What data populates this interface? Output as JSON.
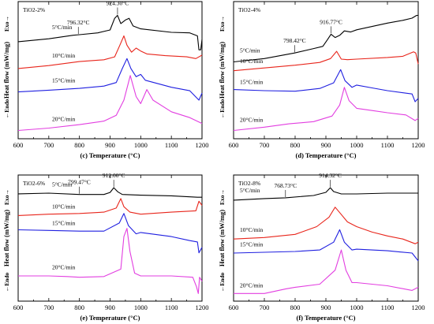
{
  "colors": {
    "rate_5": "#000000",
    "rate_10": "#e8251b",
    "rate_15": "#1f1fe0",
    "rate_20": "#e23ee0"
  },
  "chart_data": [
    {
      "id": "c",
      "type": "line",
      "title": "TiO2-2%",
      "caption": "(c) Temperature (°C)",
      "ylabel": "Heat flow (mW/mg)",
      "ylabel_exo": "Exo→",
      "ylabel_endo": "←Endo",
      "xlim": [
        600,
        1200
      ],
      "xticks": [
        600,
        700,
        800,
        900,
        1000,
        1100,
        1200
      ],
      "series": [
        {
          "name": "5°C/min",
          "rate": 5,
          "points": [
            [
              600,
              3.3
            ],
            [
              700,
              3.05
            ],
            [
              780,
              2.75
            ],
            [
              800,
              2.7
            ],
            [
              860,
              2.55
            ],
            [
              900,
              2.3
            ],
            [
              915,
              1.3
            ],
            [
              924.3,
              1.05
            ],
            [
              935,
              1.75
            ],
            [
              950,
              1.45
            ],
            [
              962,
              1.3
            ],
            [
              975,
              1.95
            ],
            [
              1000,
              2.2
            ],
            [
              1100,
              2.5
            ],
            [
              1160,
              2.55
            ],
            [
              1185,
              2.8
            ],
            [
              1190,
              4.0
            ],
            [
              1196,
              4.0
            ],
            [
              1200,
              3.1
            ]
          ]
        },
        {
          "name": "10°C/min",
          "rate": 10,
          "points": [
            [
              600,
              5.6
            ],
            [
              700,
              5.35
            ],
            [
              800,
              5.0
            ],
            [
              880,
              4.85
            ],
            [
              915,
              4.6
            ],
            [
              932,
              3.6
            ],
            [
              945,
              2.8
            ],
            [
              955,
              3.6
            ],
            [
              970,
              4.2
            ],
            [
              985,
              3.85
            ],
            [
              1000,
              4.1
            ],
            [
              1020,
              4.35
            ],
            [
              1080,
              4.5
            ],
            [
              1150,
              4.6
            ],
            [
              1180,
              4.75
            ],
            [
              1200,
              4.45
            ]
          ]
        },
        {
          "name": "15°C/min",
          "rate": 15,
          "points": [
            [
              600,
              7.6
            ],
            [
              700,
              7.45
            ],
            [
              800,
              7.3
            ],
            [
              880,
              7.1
            ],
            [
              920,
              6.8
            ],
            [
              940,
              5.6
            ],
            [
              955,
              4.75
            ],
            [
              968,
              5.6
            ],
            [
              985,
              6.3
            ],
            [
              1000,
              6.1
            ],
            [
              1015,
              6.6
            ],
            [
              1100,
              7.2
            ],
            [
              1160,
              7.5
            ],
            [
              1190,
              8.3
            ],
            [
              1200,
              7.7
            ]
          ]
        },
        {
          "name": "20°C/min",
          "rate": 20,
          "points": [
            [
              600,
              10.9
            ],
            [
              700,
              10.7
            ],
            [
              800,
              10.4
            ],
            [
              880,
              10.1
            ],
            [
              920,
              9.6
            ],
            [
              945,
              8.3
            ],
            [
              966,
              6.2
            ],
            [
              985,
              8.0
            ],
            [
              1000,
              8.6
            ],
            [
              1020,
              7.4
            ],
            [
              1040,
              8.3
            ],
            [
              1100,
              9.3
            ],
            [
              1160,
              9.8
            ],
            [
              1200,
              10.3
            ]
          ]
        }
      ],
      "annotations": [
        {
          "text": "796.32°C",
          "x": 796.32
        },
        {
          "text": "924.30°C",
          "x": 924.3
        }
      ]
    },
    {
      "id": "d",
      "type": "line",
      "title": "TiO2-4%",
      "caption": "(d) Temperature (°C)",
      "ylabel": "Heat flow (mW/mg)",
      "ylabel_exo": "Exo→",
      "ylabel_endo": "←Endo",
      "xlim": [
        600,
        1200
      ],
      "xticks": [
        600,
        700,
        800,
        900,
        1000,
        1100,
        1200
      ],
      "series": [
        {
          "name": "5°C/min",
          "rate": 5,
          "points": [
            [
              600,
              4.3
            ],
            [
              700,
              4.0
            ],
            [
              798.42,
              3.5
            ],
            [
              860,
              3.1
            ],
            [
              890,
              2.9
            ],
            [
              905,
              2.3
            ],
            [
              916.77,
              1.8
            ],
            [
              930,
              2.1
            ],
            [
              945,
              1.9
            ],
            [
              960,
              1.5
            ],
            [
              980,
              1.6
            ],
            [
              1000,
              1.4
            ],
            [
              1100,
              0.8
            ],
            [
              1150,
              0.55
            ],
            [
              1180,
              0.35
            ],
            [
              1195,
              0.1
            ],
            [
              1200,
              0.1
            ]
          ]
        },
        {
          "name": "10°C/min",
          "rate": 10,
          "points": [
            [
              600,
              5.1
            ],
            [
              700,
              4.85
            ],
            [
              800,
              4.6
            ],
            [
              880,
              4.35
            ],
            [
              915,
              4.0
            ],
            [
              935,
              3.35
            ],
            [
              950,
              4.05
            ],
            [
              970,
              4.1
            ],
            [
              1000,
              4.05
            ],
            [
              1100,
              3.9
            ],
            [
              1150,
              3.8
            ],
            [
              1185,
              3.4
            ],
            [
              1192,
              3.5
            ],
            [
              1200,
              4.5
            ]
          ]
        },
        {
          "name": "15°C/min",
          "rate": 15,
          "points": [
            [
              600,
              6.8
            ],
            [
              700,
              6.9
            ],
            [
              800,
              6.95
            ],
            [
              880,
              6.7
            ],
            [
              925,
              6.2
            ],
            [
              948,
              5.0
            ],
            [
              962,
              6.0
            ],
            [
              985,
              6.6
            ],
            [
              1000,
              6.4
            ],
            [
              1050,
              6.65
            ],
            [
              1100,
              6.9
            ],
            [
              1180,
              7.2
            ],
            [
              1190,
              7.9
            ],
            [
              1200,
              7.6
            ]
          ]
        },
        {
          "name": "20°C/min",
          "rate": 20,
          "points": [
            [
              600,
              10.5
            ],
            [
              700,
              10.2
            ],
            [
              780,
              9.9
            ],
            [
              860,
              9.7
            ],
            [
              920,
              9.2
            ],
            [
              945,
              8.2
            ],
            [
              960,
              6.6
            ],
            [
              975,
              7.8
            ],
            [
              1000,
              8.5
            ],
            [
              1050,
              8.7
            ],
            [
              1100,
              8.9
            ],
            [
              1160,
              9.1
            ],
            [
              1190,
              9.6
            ],
            [
              1200,
              9.4
            ]
          ]
        }
      ],
      "annotations": [
        {
          "text": "798.42°C",
          "x": 798.42
        },
        {
          "text": "916.77°C",
          "x": 916.77
        }
      ]
    },
    {
      "id": "e",
      "type": "line",
      "title": "TiO2-6%",
      "caption": "(e) Temperature (°C)",
      "ylabel": "Heat flow (mW/mg)",
      "ylabel_exo": "Exo→",
      "ylabel_endo": "←Endo",
      "xlim": [
        600,
        1200
      ],
      "xticks": [
        600,
        700,
        800,
        900,
        1000,
        1100,
        1200
      ],
      "series": [
        {
          "name": "5°C/min",
          "rate": 5,
          "points": [
            [
              600,
              2.25
            ],
            [
              700,
              2.2
            ],
            [
              799.47,
              2.3
            ],
            [
              880,
              2.3
            ],
            [
              900,
              2.15
            ],
            [
              912,
              1.8
            ],
            [
              925,
              2.1
            ],
            [
              940,
              2.3
            ],
            [
              1000,
              2.35
            ],
            [
              1100,
              2.4
            ],
            [
              1185,
              2.5
            ],
            [
              1200,
              2.5
            ]
          ]
        },
        {
          "name": "10°C/min",
          "rate": 10,
          "points": [
            [
              600,
              3.85
            ],
            [
              700,
              3.75
            ],
            [
              800,
              3.7
            ],
            [
              880,
              3.6
            ],
            [
              920,
              3.3
            ],
            [
              935,
              2.6
            ],
            [
              945,
              3.2
            ],
            [
              965,
              3.6
            ],
            [
              1000,
              3.75
            ],
            [
              1100,
              3.6
            ],
            [
              1180,
              3.5
            ],
            [
              1190,
              2.8
            ],
            [
              1200,
              3.1
            ]
          ]
        },
        {
          "name": "15°C/min",
          "rate": 15,
          "points": [
            [
              600,
              4.9
            ],
            [
              700,
              4.95
            ],
            [
              800,
              5.0
            ],
            [
              880,
              5.0
            ],
            [
              930,
              4.4
            ],
            [
              945,
              3.7
            ],
            [
              960,
              4.6
            ],
            [
              985,
              5.2
            ],
            [
              1000,
              5.1
            ],
            [
              1100,
              5.4
            ],
            [
              1160,
              5.7
            ],
            [
              1185,
              5.8
            ],
            [
              1190,
              6.6
            ],
            [
              1200,
              6.2
            ]
          ]
        },
        {
          "name": "20°C/min",
          "rate": 20,
          "points": [
            [
              600,
              8.3
            ],
            [
              700,
              8.3
            ],
            [
              760,
              8.35
            ],
            [
              800,
              8.4
            ],
            [
              880,
              8.35
            ],
            [
              935,
              7.8
            ],
            [
              945,
              5.4
            ],
            [
              955,
              4.8
            ],
            [
              965,
              6.5
            ],
            [
              980,
              8.1
            ],
            [
              1000,
              8.3
            ],
            [
              1100,
              8.3
            ],
            [
              1170,
              8.4
            ],
            [
              1182,
              9.1
            ],
            [
              1188,
              9.6
            ],
            [
              1192,
              8.4
            ],
            [
              1200,
              8.7
            ]
          ]
        }
      ],
      "annotations": [
        {
          "text": "799.47°C",
          "x": 799.47
        },
        {
          "text": "912.00°C",
          "x": 912.0
        }
      ]
    },
    {
      "id": "f",
      "type": "line",
      "title": "TiO2-8%",
      "caption": "(f) Temperature (°C)",
      "ylabel": "Heat flow (mW/mg)",
      "ylabel_exo": "Exo→",
      "ylabel_endo": "←Endo",
      "xlim": [
        600,
        1200
      ],
      "xticks": [
        600,
        700,
        800,
        900,
        1000,
        1100,
        1200
      ],
      "series": [
        {
          "name": "5°C/min",
          "rate": 5,
          "points": [
            [
              600,
              2.9
            ],
            [
              700,
              2.8
            ],
            [
              768.73,
              2.75
            ],
            [
              860,
              2.6
            ],
            [
              900,
              2.4
            ],
            [
              914.32,
              2.1
            ],
            [
              925,
              2.35
            ],
            [
              950,
              2.5
            ],
            [
              1000,
              2.5
            ],
            [
              1100,
              2.45
            ],
            [
              1200,
              2.45
            ]
          ]
        },
        {
          "name": "10°C/min",
          "rate": 10,
          "points": [
            [
              600,
              5.4
            ],
            [
              700,
              5.3
            ],
            [
              800,
              5.1
            ],
            [
              870,
              4.6
            ],
            [
              910,
              4.0
            ],
            [
              930,
              3.35
            ],
            [
              945,
              3.7
            ],
            [
              970,
              4.3
            ],
            [
              1000,
              4.6
            ],
            [
              1050,
              4.95
            ],
            [
              1100,
              5.2
            ],
            [
              1150,
              5.4
            ],
            [
              1190,
              5.7
            ],
            [
              1200,
              5.6
            ]
          ]
        },
        {
          "name": "15°C/min",
          "rate": 15,
          "points": [
            [
              600,
              6.3
            ],
            [
              700,
              6.25
            ],
            [
              800,
              6.2
            ],
            [
              880,
              6.1
            ],
            [
              925,
              5.6
            ],
            [
              945,
              4.8
            ],
            [
              960,
              5.6
            ],
            [
              985,
              6.1
            ],
            [
              1000,
              6.05
            ],
            [
              1100,
              6.15
            ],
            [
              1180,
              6.3
            ],
            [
              1200,
              6.8
            ]
          ]
        },
        {
          "name": "20°C/min",
          "rate": 20,
          "points": [
            [
              600,
              8.9
            ],
            [
              700,
              8.9
            ],
            [
              770,
              8.6
            ],
            [
              800,
              8.5
            ],
            [
              880,
              8.3
            ],
            [
              930,
              7.4
            ],
            [
              950,
              6.1
            ],
            [
              965,
              7.4
            ],
            [
              985,
              8.2
            ],
            [
              1000,
              8.2
            ],
            [
              1100,
              8.4
            ],
            [
              1180,
              8.7
            ],
            [
              1200,
              8.5
            ]
          ]
        }
      ],
      "annotations": [
        {
          "text": "768.73°C",
          "x": 768.73
        },
        {
          "text": "914.32°C",
          "x": 914.32
        }
      ]
    }
  ]
}
